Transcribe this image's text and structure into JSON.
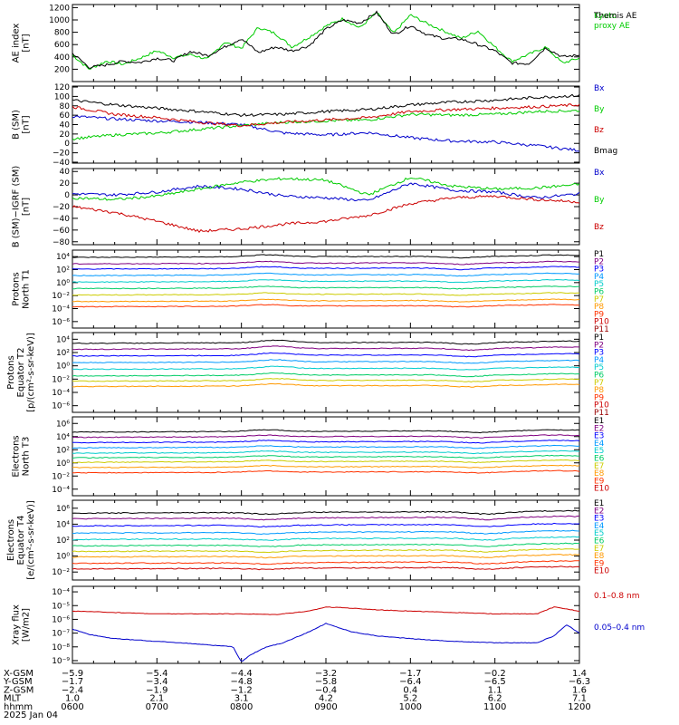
{
  "chart_data": [
    {
      "type": "line",
      "panel": "ae",
      "ylabel": [
        "AE index",
        "[nT]"
      ],
      "ytick_labels": [
        "1200",
        "1000",
        "800",
        "600",
        "400",
        "200"
      ],
      "ytick_values": [
        1200,
        1000,
        800,
        600,
        400,
        200
      ],
      "ylim": [
        0,
        1250
      ],
      "series": [
        {
          "name": "Kyoto proxy AE",
          "color": "#00cc00",
          "legend_lines": [
            "Kyoto",
            "proxy AE"
          ],
          "x": [
            0,
            0.2,
            0.4,
            0.6,
            0.8,
            1.0,
            1.2,
            1.4,
            1.6,
            1.8,
            2.0,
            2.2,
            2.4,
            2.6,
            2.8,
            3.0,
            3.2,
            3.4,
            3.6,
            3.8,
            4.0,
            4.2,
            4.4,
            4.6,
            4.8,
            5.0,
            5.2,
            5.4,
            5.6,
            5.8,
            6.0
          ],
          "y": [
            430,
            200,
            330,
            280,
            380,
            500,
            390,
            440,
            360,
            640,
            540,
            880,
            780,
            560,
            720,
            900,
            1020,
            870,
            1120,
            780,
            1080,
            940,
            820,
            700,
            820,
            560,
            330,
            440,
            560,
            300,
            380
          ]
        },
        {
          "name": "Themis AE",
          "color": "#000000",
          "legend_lines": [
            "Themis AE"
          ],
          "x": [
            0,
            0.2,
            0.4,
            0.6,
            0.8,
            1.0,
            1.2,
            1.4,
            1.6,
            1.8,
            2.0,
            2.2,
            2.4,
            2.6,
            2.8,
            3.0,
            3.2,
            3.4,
            3.6,
            3.8,
            4.0,
            4.2,
            4.4,
            4.6,
            4.8,
            5.0,
            5.2,
            5.4,
            5.6,
            5.8,
            6.0
          ],
          "y": [
            460,
            230,
            270,
            330,
            310,
            380,
            340,
            490,
            420,
            560,
            700,
            470,
            560,
            500,
            580,
            850,
            1000,
            950,
            1120,
            760,
            910,
            760,
            700,
            690,
            600,
            500,
            300,
            290,
            550,
            400,
            430
          ]
        }
      ]
    },
    {
      "type": "line",
      "panel": "bsm",
      "ylabel": [
        "B (SM)",
        "[nT]"
      ],
      "ytick_labels": [
        "120",
        "100",
        "80",
        "60",
        "40",
        "20",
        "0",
        "−20",
        "−40"
      ],
      "ytick_values": [
        120,
        100,
        80,
        60,
        40,
        20,
        0,
        -20,
        -40
      ],
      "ylim": [
        -42,
        122
      ],
      "series": [
        {
          "name": "Bx",
          "color": "#0000cc",
          "x": [
            0,
            0.5,
            1,
            1.5,
            2,
            2.5,
            3,
            3.5,
            4,
            4.5,
            5,
            5.5,
            6
          ],
          "y": [
            58,
            52,
            48,
            45,
            40,
            22,
            18,
            23,
            12,
            5,
            3,
            -5,
            -15
          ]
        },
        {
          "name": "By",
          "color": "#00cc00",
          "x": [
            0,
            0.5,
            1,
            1.5,
            2,
            2.5,
            3,
            3.5,
            4,
            4.5,
            5,
            5.5,
            6
          ],
          "y": [
            10,
            18,
            22,
            30,
            38,
            45,
            48,
            50,
            62,
            60,
            62,
            68,
            70
          ]
        },
        {
          "name": "Bz",
          "color": "#cc0000",
          "x": [
            0,
            0.5,
            1,
            1.5,
            2,
            2.5,
            3,
            3.5,
            4,
            4.5,
            5,
            5.5,
            6
          ],
          "y": [
            78,
            62,
            55,
            45,
            38,
            45,
            50,
            55,
            68,
            72,
            75,
            78,
            82
          ]
        },
        {
          "name": "Bmag",
          "color": "#000000",
          "x": [
            0,
            0.5,
            1,
            1.5,
            2,
            2.5,
            3,
            3.5,
            4,
            4.5,
            5,
            5.5,
            6
          ],
          "y": [
            92,
            82,
            75,
            68,
            60,
            62,
            68,
            72,
            82,
            88,
            92,
            98,
            102
          ]
        }
      ]
    },
    {
      "type": "line",
      "panel": "bigrf",
      "ylabel": [
        "B (SM)−IGRF (SM)",
        "[nT]"
      ],
      "ytick_labels": [
        "40",
        "20",
        "0",
        "−20",
        "−40",
        "−60",
        "−80"
      ],
      "ytick_values": [
        40,
        20,
        0,
        -20,
        -40,
        -60,
        -80
      ],
      "ylim": [
        -85,
        45
      ],
      "series": [
        {
          "name": "Bx",
          "color": "#0000cc",
          "x": [
            0,
            0.5,
            1,
            1.5,
            2,
            2.5,
            3,
            3.5,
            4,
            4.5,
            5,
            5.5,
            6
          ],
          "y": [
            2,
            0,
            5,
            15,
            10,
            -2,
            -5,
            -10,
            20,
            8,
            5,
            -5,
            2
          ]
        },
        {
          "name": "By",
          "color": "#00cc00",
          "x": [
            0,
            0.5,
            1,
            1.5,
            2,
            2.5,
            3,
            3.5,
            4,
            4.5,
            5,
            5.5,
            6
          ],
          "y": [
            -5,
            -8,
            -2,
            10,
            22,
            28,
            25,
            0,
            30,
            15,
            10,
            12,
            18
          ]
        },
        {
          "name": "Bz",
          "color": "#cc0000",
          "x": [
            0,
            0.5,
            1,
            1.5,
            2,
            2.5,
            3,
            3.5,
            4,
            4.5,
            5,
            5.5,
            6
          ],
          "y": [
            -20,
            -30,
            -45,
            -62,
            -58,
            -50,
            -45,
            -35,
            -15,
            -5,
            -2,
            -8,
            -12
          ]
        }
      ]
    },
    {
      "type": "line",
      "panel": "protons_north",
      "ylabel": [
        "Protons",
        "North T1"
      ],
      "ytick_labels": [
        "10⁴",
        "10²",
        "10⁰",
        "10⁻²",
        "10⁻⁴",
        "10⁻⁶"
      ],
      "ytick_values": [
        4,
        2,
        0,
        -2,
        -4,
        -6
      ],
      "ylim": [
        -7,
        5
      ],
      "log_scale": true,
      "channels": [
        "P1",
        "P2",
        "P3",
        "P4",
        "P5",
        "P6",
        "P7",
        "P8",
        "P9",
        "P10",
        "P11"
      ],
      "channel_colors": [
        "#000000",
        "#800080",
        "#0000ff",
        "#0099ff",
        "#00cccc",
        "#00cc66",
        "#cccc00",
        "#ff9900",
        "#ff3300",
        "#cc0000",
        "#990000"
      ],
      "channel_levels": [
        4.0,
        3.0,
        2.2,
        1.2,
        0.2,
        -0.8,
        -1.8,
        -2.8,
        -3.6,
        -9,
        -9
      ],
      "event_bumps": [
        [
          2.3,
          1.2
        ],
        [
          4.6,
          -1.0
        ],
        [
          5.7,
          0.6
        ]
      ]
    },
    {
      "type": "line",
      "panel": "protons_equator",
      "ylabel": [
        "Protons",
        "Equator T2",
        "[p/(cm²-s-sr-keV)]"
      ],
      "ytick_labels": [
        "10⁴",
        "10²",
        "10⁰",
        "10⁻²",
        "10⁻⁴",
        "10⁻⁶"
      ],
      "ytick_values": [
        4,
        2,
        0,
        -2,
        -4,
        -6
      ],
      "ylim": [
        -7,
        5
      ],
      "log_scale": true,
      "channels": [
        "P1",
        "P2",
        "P3",
        "P4",
        "P5",
        "P6",
        "P7",
        "P8",
        "P9",
        "P10",
        "P11"
      ],
      "channel_colors": [
        "#000000",
        "#800080",
        "#0000ff",
        "#0099ff",
        "#00cccc",
        "#00cc66",
        "#cccc00",
        "#ff9900",
        "#ff3300",
        "#cc0000",
        "#990000"
      ],
      "channel_levels": [
        3.5,
        2.6,
        1.6,
        0.6,
        -0.4,
        -1.4,
        -2.2,
        -3.0,
        -9,
        -9,
        -9
      ],
      "event_bumps": [
        [
          2.4,
          1.5
        ],
        [
          4.7,
          -1.2
        ],
        [
          5.8,
          0.5
        ]
      ]
    },
    {
      "type": "line",
      "panel": "electrons_north",
      "ylabel": [
        "Electrons",
        "North T3"
      ],
      "ytick_labels": [
        "10⁶",
        "10⁴",
        "10²",
        "10⁰",
        "10⁻²",
        "10⁻⁴"
      ],
      "ytick_values": [
        6,
        4,
        2,
        0,
        -2,
        -4
      ],
      "ylim": [
        -5,
        7
      ],
      "log_scale": true,
      "channels": [
        "E1",
        "E2",
        "E3",
        "E4",
        "E5",
        "E6",
        "E7",
        "E8",
        "E9",
        "E10"
      ],
      "channel_colors": [
        "#000000",
        "#800080",
        "#0000ff",
        "#0099ff",
        "#00cccc",
        "#00cc66",
        "#cccc00",
        "#ff9900",
        "#ff3300",
        "#cc0000"
      ],
      "channel_levels": [
        4.8,
        4.0,
        3.2,
        2.4,
        1.6,
        0.9,
        0.2,
        -0.6,
        -1.4,
        -9
      ],
      "event_bumps": [
        [
          2.3,
          1.0
        ],
        [
          4.8,
          -1.0
        ],
        [
          5.7,
          0.5
        ]
      ]
    },
    {
      "type": "line",
      "panel": "electrons_equator",
      "ylabel": [
        "Electrons",
        "Equator T4",
        "[e/(cm²-s-sr-keV)]"
      ],
      "ytick_labels": [
        "10⁶",
        "10⁴",
        "10²",
        "10⁰",
        "10⁻²"
      ],
      "ytick_values": [
        6,
        4,
        2,
        0,
        -2
      ],
      "ylim": [
        -3,
        7
      ],
      "log_scale": true,
      "channels": [
        "E1",
        "E2",
        "E3",
        "E4",
        "E5",
        "E6",
        "E7",
        "E8",
        "E9",
        "E10"
      ],
      "channel_colors": [
        "#000000",
        "#800080",
        "#0000ff",
        "#0099ff",
        "#00cccc",
        "#00cc66",
        "#cccc00",
        "#ff9900",
        "#ff3300",
        "#cc0000"
      ],
      "channel_levels": [
        5.5,
        4.8,
        3.9,
        3.0,
        2.2,
        1.4,
        0.7,
        0,
        -0.8,
        -1.5
      ],
      "event_bumps": [
        [
          2.3,
          -0.8
        ],
        [
          4.9,
          -1.2
        ],
        [
          5.8,
          0.3
        ]
      ]
    },
    {
      "type": "line",
      "panel": "xray",
      "ylabel": [
        "Xray flux",
        "[W/m2]"
      ],
      "ytick_labels": [
        "10⁻⁴",
        "10⁻⁵",
        "10⁻⁶",
        "10⁻⁷",
        "10⁻⁸",
        "10⁻⁹"
      ],
      "ytick_values": [
        -4,
        -5,
        -6,
        -7,
        -8,
        -9
      ],
      "ylim": [
        -9.2,
        -3.6
      ],
      "log_scale": true,
      "series": [
        {
          "name": "0.1–0.8 nm",
          "color": "#cc0000",
          "x": [
            0,
            0.5,
            1,
            1.5,
            2,
            2.4,
            2.8,
            3.0,
            3.2,
            3.6,
            4,
            4.5,
            5,
            5.5,
            5.7,
            5.9,
            6
          ],
          "y": [
            -5.4,
            -5.5,
            -5.6,
            -5.6,
            -5.6,
            -5.65,
            -5.4,
            -5.1,
            -5.15,
            -5.3,
            -5.4,
            -5.5,
            -5.6,
            -5.6,
            -5.1,
            -5.3,
            -5.4
          ]
        },
        {
          "name": "0.05–0.4 nm",
          "color": "#0000cc",
          "x": [
            0,
            0.2,
            0.5,
            1,
            1.5,
            1.9,
            2.0,
            2.1,
            2.3,
            2.5,
            2.8,
            3.0,
            3.3,
            3.6,
            4,
            4.5,
            5,
            5.5,
            5.7,
            5.85,
            6
          ],
          "y": [
            -6.7,
            -7.1,
            -7.4,
            -7.6,
            -7.8,
            -8.0,
            -9.1,
            -8.6,
            -8.0,
            -7.7,
            -6.9,
            -6.3,
            -6.9,
            -7.2,
            -7.4,
            -7.6,
            -7.7,
            -7.7,
            -7.2,
            -6.4,
            -7.0
          ]
        }
      ]
    }
  ],
  "xaxis": {
    "xlim": [
      0,
      6
    ],
    "tick_values": [
      0,
      1,
      2,
      3,
      4,
      5,
      6
    ],
    "rows": [
      {
        "label": "X-GSM",
        "values": [
          "−5.9",
          "−5.4",
          "−4.4",
          "−3.2",
          "−1.7",
          "−0.2",
          "1.4"
        ]
      },
      {
        "label": "Y-GSM",
        "values": [
          "−1.7",
          "−3.4",
          "−4.8",
          "−5.8",
          "−6.4",
          "−6.5",
          "−6.3"
        ]
      },
      {
        "label": "Z-GSM",
        "values": [
          "−2.4",
          "−1.9",
          "−1.2",
          "−0.4",
          "0.4",
          "1.1",
          "1.6"
        ]
      },
      {
        "label": "MLT",
        "values": [
          "1.0",
          "2.1",
          "3.1",
          "4.2",
          "5.2",
          "6.2",
          "7.1"
        ]
      },
      {
        "label": "hhmm",
        "values": [
          "0600",
          "0700",
          "0800",
          "0900",
          "1000",
          "1100",
          "1200"
        ]
      }
    ],
    "date": "2025 Jan 04"
  }
}
